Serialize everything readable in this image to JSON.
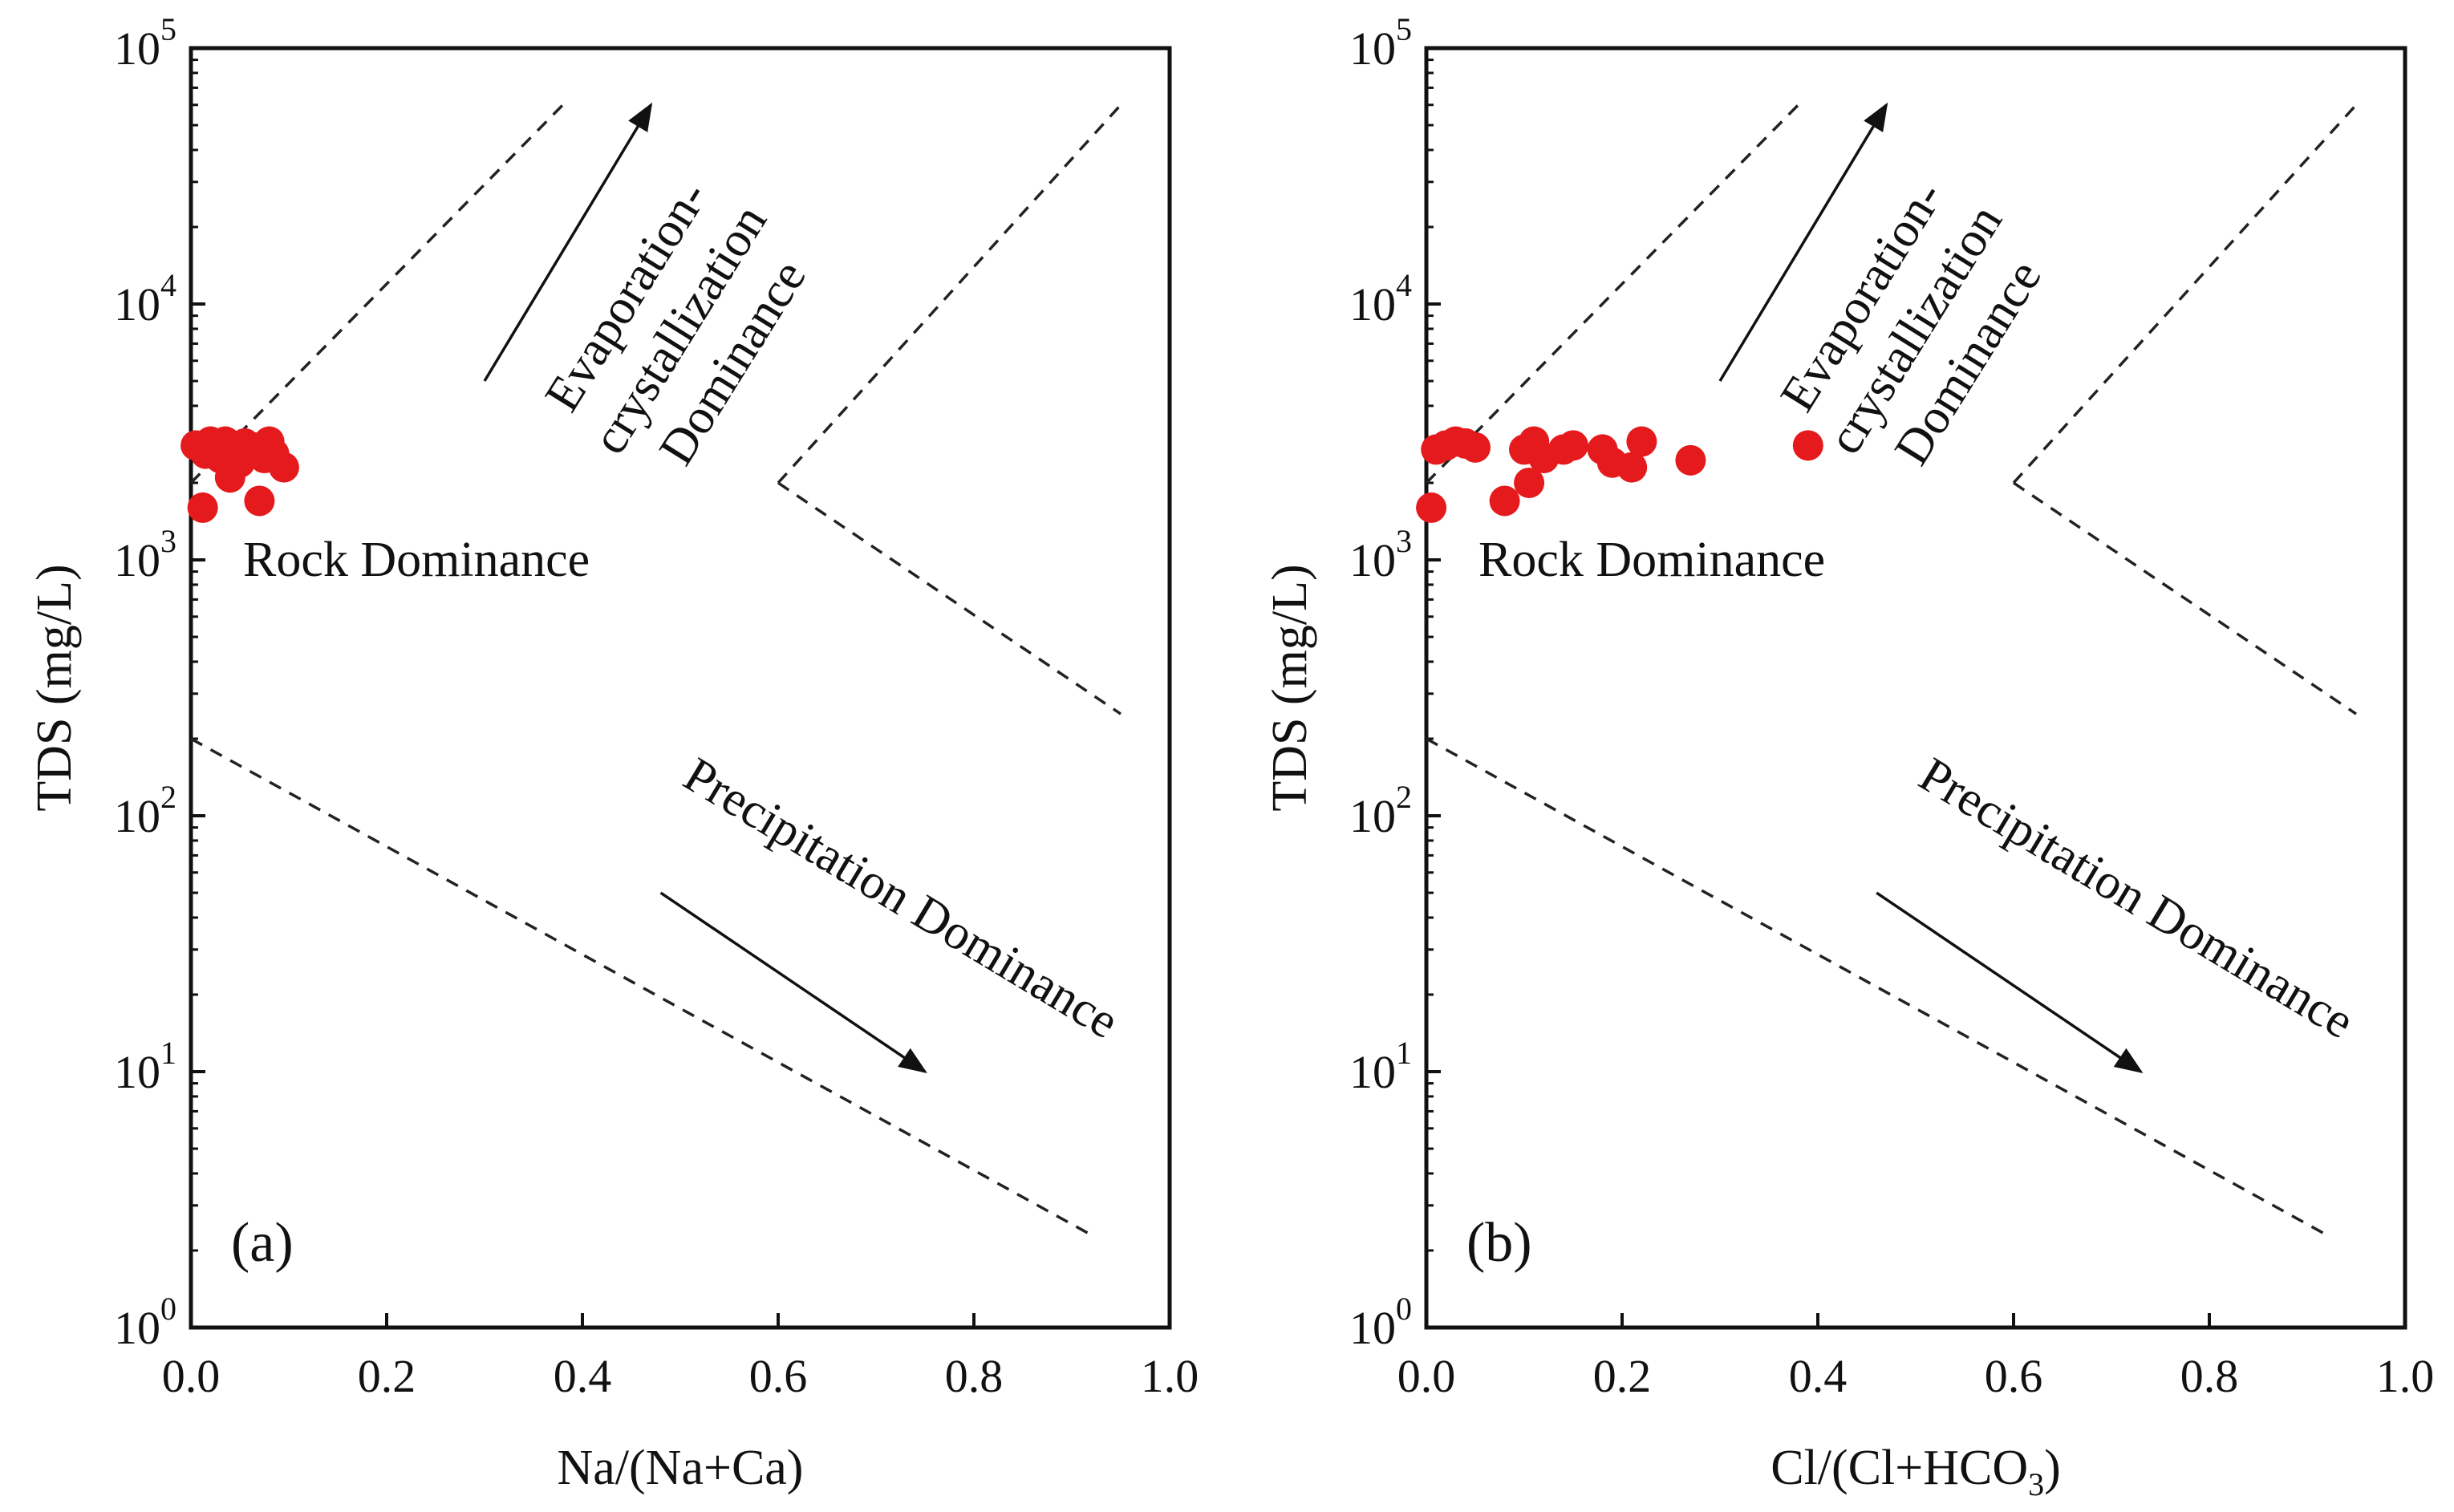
{
  "figure": {
    "colors": {
      "points": "#e41a1c",
      "axes": "#111111",
      "lines": "#222222"
    }
  },
  "chart_data": [
    {
      "type": "scatter",
      "panel_label": "(a)",
      "xlabel": "Na/(Na+Ca)",
      "ylabel": "TDS (mg/L)",
      "xlim": [
        0.0,
        1.0
      ],
      "ylim_log10": [
        0,
        5
      ],
      "y_scale": "log",
      "x_ticks": [
        "0.0",
        "0.2",
        "0.4",
        "0.6",
        "0.8",
        "1.0"
      ],
      "y_ticks": [
        {
          "base": "10",
          "exp": "0"
        },
        {
          "base": "10",
          "exp": "1"
        },
        {
          "base": "10",
          "exp": "2"
        },
        {
          "base": "10",
          "exp": "3"
        },
        {
          "base": "10",
          "exp": "4"
        },
        {
          "base": "10",
          "exp": "5"
        }
      ],
      "region_labels": {
        "rock": "Rock Dominance",
        "evaporation_1": "Evaporation-",
        "evaporation_2": "crystallization",
        "evaporation_3": "Dominance",
        "precipitation": "Precipitation Dominance"
      },
      "boundary_lines": [
        {
          "name": "upper-left",
          "points": [
            [
              0.0,
              2000
            ],
            [
              0.38,
              60000
            ]
          ]
        },
        {
          "name": "lower-left",
          "points": [
            [
              0.0,
              200
            ],
            [
              0.92,
              2.3
            ]
          ]
        },
        {
          "name": "upper-right",
          "points": [
            [
              0.6,
              2000
            ],
            [
              0.95,
              60000
            ]
          ]
        },
        {
          "name": "lower-right",
          "points": [
            [
              0.6,
              2000
            ],
            [
              0.95,
              250
            ]
          ]
        }
      ],
      "arrows": [
        {
          "name": "up-arrow",
          "from": [
            0.3,
            5000
          ],
          "to": [
            0.47,
            60000
          ]
        },
        {
          "name": "down-arrow",
          "from": [
            0.48,
            50
          ],
          "to": [
            0.75,
            10
          ]
        }
      ],
      "points": [
        {
          "x": 0.005,
          "y": 2800
        },
        {
          "x": 0.012,
          "y": 1600
        },
        {
          "x": 0.015,
          "y": 2600
        },
        {
          "x": 0.02,
          "y": 2900
        },
        {
          "x": 0.025,
          "y": 2750
        },
        {
          "x": 0.03,
          "y": 2500
        },
        {
          "x": 0.035,
          "y": 2900
        },
        {
          "x": 0.04,
          "y": 2100
        },
        {
          "x": 0.045,
          "y": 2700
        },
        {
          "x": 0.05,
          "y": 2400
        },
        {
          "x": 0.055,
          "y": 2850
        },
        {
          "x": 0.06,
          "y": 2600
        },
        {
          "x": 0.065,
          "y": 2750
        },
        {
          "x": 0.07,
          "y": 1700
        },
        {
          "x": 0.075,
          "y": 2500
        },
        {
          "x": 0.08,
          "y": 2900
        },
        {
          "x": 0.085,
          "y": 2600
        },
        {
          "x": 0.095,
          "y": 2300
        }
      ]
    },
    {
      "type": "scatter",
      "panel_label": "(b)",
      "xlabel": "Cl/(Cl+HCO",
      "xlabel_sub": "3",
      "xlabel_tail": ")",
      "ylabel": "TDS (mg/L)",
      "xlim": [
        0.0,
        1.0
      ],
      "ylim_log10": [
        0,
        5
      ],
      "y_scale": "log",
      "x_ticks": [
        "0.0",
        "0.2",
        "0.4",
        "0.6",
        "0.8",
        "1.0"
      ],
      "y_ticks": [
        {
          "base": "10",
          "exp": "0"
        },
        {
          "base": "10",
          "exp": "1"
        },
        {
          "base": "10",
          "exp": "2"
        },
        {
          "base": "10",
          "exp": "3"
        },
        {
          "base": "10",
          "exp": "4"
        },
        {
          "base": "10",
          "exp": "5"
        }
      ],
      "region_labels": {
        "rock": "Rock Dominance",
        "evaporation_1": "Evaporation-",
        "evaporation_2": "crystallization",
        "evaporation_3": "Dominance",
        "precipitation": "Precipitation Dominance"
      },
      "boundary_lines": [
        {
          "name": "upper-left",
          "points": [
            [
              0.0,
              2000
            ],
            [
              0.38,
              60000
            ]
          ]
        },
        {
          "name": "lower-left",
          "points": [
            [
              0.0,
              200
            ],
            [
              0.92,
              2.3
            ]
          ]
        },
        {
          "name": "upper-right",
          "points": [
            [
              0.6,
              2000
            ],
            [
              0.95,
              60000
            ]
          ]
        },
        {
          "name": "lower-right",
          "points": [
            [
              0.6,
              2000
            ],
            [
              0.95,
              250
            ]
          ]
        }
      ],
      "arrows": [
        {
          "name": "up-arrow",
          "from": [
            0.3,
            5000
          ],
          "to": [
            0.47,
            60000
          ]
        },
        {
          "name": "down-arrow",
          "from": [
            0.46,
            50
          ],
          "to": [
            0.73,
            10
          ]
        }
      ],
      "points": [
        {
          "x": 0.005,
          "y": 1600
        },
        {
          "x": 0.01,
          "y": 2700
        },
        {
          "x": 0.02,
          "y": 2800
        },
        {
          "x": 0.03,
          "y": 2900
        },
        {
          "x": 0.04,
          "y": 2850
        },
        {
          "x": 0.05,
          "y": 2750
        },
        {
          "x": 0.08,
          "y": 1700
        },
        {
          "x": 0.1,
          "y": 2700
        },
        {
          "x": 0.105,
          "y": 2000
        },
        {
          "x": 0.11,
          "y": 2900
        },
        {
          "x": 0.12,
          "y": 2500
        },
        {
          "x": 0.14,
          "y": 2700
        },
        {
          "x": 0.15,
          "y": 2800
        },
        {
          "x": 0.18,
          "y": 2700
        },
        {
          "x": 0.19,
          "y": 2400
        },
        {
          "x": 0.21,
          "y": 2300
        },
        {
          "x": 0.22,
          "y": 2900
        },
        {
          "x": 0.27,
          "y": 2450
        },
        {
          "x": 0.39,
          "y": 2800
        }
      ]
    }
  ]
}
